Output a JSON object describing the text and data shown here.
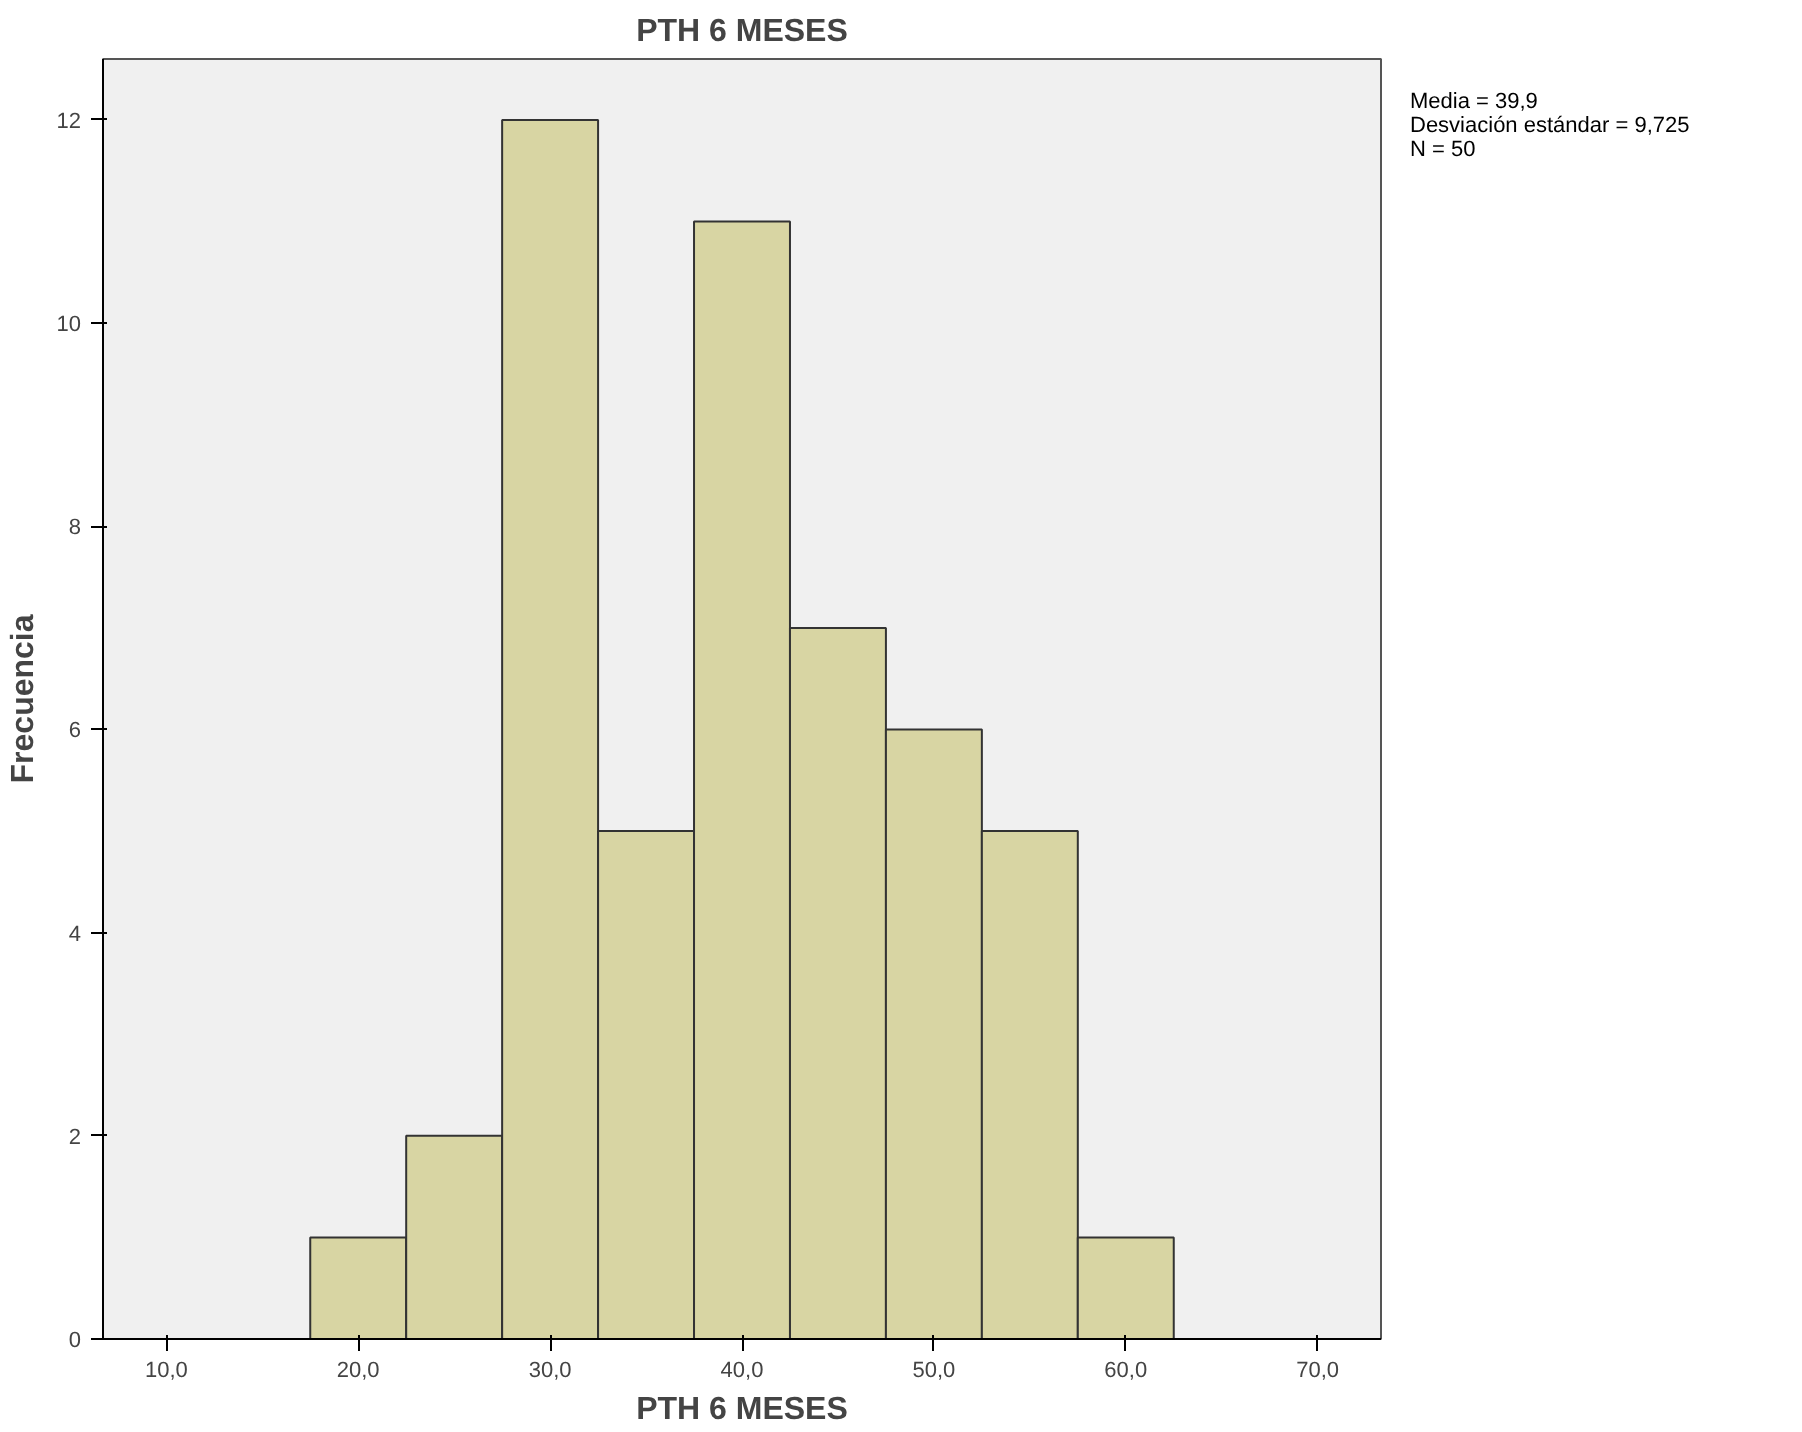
{
  "chart_data": {
    "type": "histogram",
    "title": "PTH 6 MESES",
    "xlabel": "PTH 6 MESES",
    "ylabel": "Frecuencia",
    "bins": [
      17.5,
      22.5,
      27.5,
      32.5,
      37.5,
      42.5,
      47.5,
      52.5,
      57.5,
      62.5
    ],
    "values": [
      1,
      2,
      12,
      5,
      11,
      7,
      6,
      5,
      1
    ],
    "color": "#d8d5a3",
    "xlim": [
      6.7,
      73.3
    ],
    "ylim": [
      0,
      12.6
    ],
    "xticks": [
      {
        "value": 10,
        "label": "10,0"
      },
      {
        "value": 20,
        "label": "20,0"
      },
      {
        "value": 30,
        "label": "30,0"
      },
      {
        "value": 40,
        "label": "40,0"
      },
      {
        "value": 50,
        "label": "50,0"
      },
      {
        "value": 60,
        "label": "60,0"
      },
      {
        "value": 70,
        "label": "70,0"
      }
    ],
    "yticks": [
      0,
      2,
      4,
      6,
      8,
      10,
      12
    ],
    "grid": false,
    "annotations": [
      "Media = 39,9",
      "Desviación estándar = 9,725",
      "N = 50"
    ]
  }
}
